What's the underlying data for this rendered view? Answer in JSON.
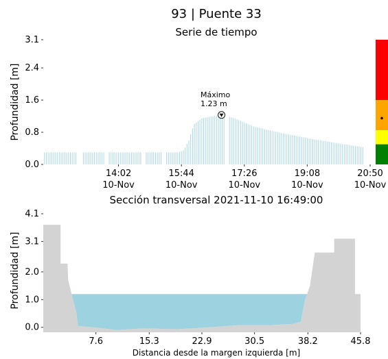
{
  "header": {
    "title": "93 | Puente 33"
  },
  "chart_data": [
    {
      "type": "bar",
      "subtitle": "Serie de tiempo",
      "ylabel": "Profundidad [m]",
      "ylim": [
        0,
        3.1
      ],
      "yticks": [
        "0.0",
        "0.8",
        "1.6",
        "2.4",
        "3.1"
      ],
      "xlim_minutes": [
        720,
        1260
      ],
      "xticks": [
        {
          "minute": 842,
          "time": "14:02",
          "date": "10-Nov"
        },
        {
          "minute": 944,
          "time": "15:44",
          "date": "10-Nov"
        },
        {
          "minute": 1046,
          "time": "17:26",
          "date": "10-Nov"
        },
        {
          "minute": 1148,
          "time": "19:08",
          "date": "10-Nov"
        },
        {
          "minute": 1250,
          "time": "20:50",
          "date": "10-Nov"
        }
      ],
      "series_color": "#a9d6e5",
      "series_profile": [
        {
          "minute": 722,
          "value": 0.3
        },
        {
          "minute": 940,
          "value": 0.3
        },
        {
          "minute": 948,
          "value": 0.36
        },
        {
          "minute": 956,
          "value": 0.6
        },
        {
          "minute": 964,
          "value": 1.0
        },
        {
          "minute": 978,
          "value": 1.15
        },
        {
          "minute": 995,
          "value": 1.2
        },
        {
          "minute": 1009,
          "value": 1.23
        },
        {
          "minute": 1030,
          "value": 1.15
        },
        {
          "minute": 1060,
          "value": 0.95
        },
        {
          "minute": 1100,
          "value": 0.8
        },
        {
          "minute": 1150,
          "value": 0.65
        },
        {
          "minute": 1200,
          "value": 0.52
        },
        {
          "minute": 1240,
          "value": 0.43
        }
      ],
      "gaps_minutes": [
        [
          775,
          783
        ],
        [
          820,
          826
        ],
        [
          880,
          886
        ],
        [
          913,
          918
        ],
        [
          1016,
          1021
        ]
      ],
      "annotation": {
        "label": "Máximo",
        "value_text": "1.23 m",
        "minute": 1009,
        "value": 1.23
      },
      "level_scale": [
        {
          "color": "#ff0000",
          "from": 1.6,
          "to": 3.1
        },
        {
          "color": "#ffa500",
          "from": 0.85,
          "to": 1.6
        },
        {
          "color": "#ffff00",
          "from": 0.5,
          "to": 0.85
        },
        {
          "color": "#008000",
          "from": 0.0,
          "to": 0.5
        }
      ],
      "current_level": 1.15
    },
    {
      "type": "area",
      "subtitle": "Sección transversal 2021-11-10 16:49:00",
      "xlabel": "Distancia desde la margen izquierda [m]",
      "ylabel": "Profundidad [m]",
      "xlim": [
        0,
        45.8
      ],
      "ylim": [
        -0.18,
        4.1
      ],
      "xticks": [
        "7.6",
        "15.3",
        "22.9",
        "30.5",
        "38.2",
        "45.8"
      ],
      "yticks": [
        "0.0",
        "1.0",
        "2.0",
        "3.1",
        "4.1"
      ],
      "water_level": 1.2,
      "terrain_color": "#d3d3d3",
      "water_color": "#9dd3e0",
      "profile": [
        {
          "x": 0.0,
          "y": 3.7
        },
        {
          "x": 2.5,
          "y": 3.7
        },
        {
          "x": 2.5,
          "y": 2.3
        },
        {
          "x": 3.5,
          "y": 2.3
        },
        {
          "x": 3.6,
          "y": 1.7
        },
        {
          "x": 4.0,
          "y": 1.3
        },
        {
          "x": 4.8,
          "y": 0.5
        },
        {
          "x": 5.0,
          "y": 0.05
        },
        {
          "x": 8.0,
          "y": -0.02
        },
        {
          "x": 10.5,
          "y": -0.1
        },
        {
          "x": 14.5,
          "y": -0.04
        },
        {
          "x": 19.5,
          "y": -0.07
        },
        {
          "x": 24.0,
          "y": 0.0
        },
        {
          "x": 28.5,
          "y": 0.08
        },
        {
          "x": 33.0,
          "y": 0.08
        },
        {
          "x": 36.0,
          "y": 0.12
        },
        {
          "x": 37.2,
          "y": 0.2
        },
        {
          "x": 37.4,
          "y": 0.5
        },
        {
          "x": 37.8,
          "y": 1.0
        },
        {
          "x": 38.5,
          "y": 1.5
        },
        {
          "x": 39.2,
          "y": 2.7
        },
        {
          "x": 42.0,
          "y": 2.7
        },
        {
          "x": 42.0,
          "y": 3.2
        },
        {
          "x": 45.0,
          "y": 3.2
        },
        {
          "x": 45.0,
          "y": 1.2
        },
        {
          "x": 45.8,
          "y": 1.2
        }
      ]
    }
  ]
}
